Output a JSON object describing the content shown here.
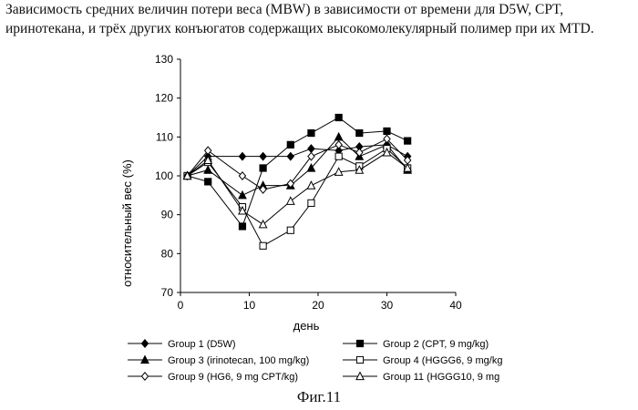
{
  "caption": "Зависимость средних величин потери веса (MBW) в зависимости от времени для D5W, CPT, иринотекана, и трёх других конъюгатов содержащих высокомолекулярный полимер при их MTD.",
  "figure_label": "Фиг.11",
  "chart_data": {
    "type": "line",
    "title": "",
    "xlabel": "день",
    "ylabel": "относительный вес (%)",
    "xlim": [
      0,
      40
    ],
    "ylim": [
      70,
      130
    ],
    "x_ticks": [
      0,
      10,
      20,
      30,
      40
    ],
    "y_ticks": [
      70,
      80,
      90,
      100,
      110,
      120,
      130
    ],
    "grid": false,
    "legend_position": "bottom",
    "series": [
      {
        "name": "Group 1 (D5W)",
        "marker": "diamond-filled",
        "x": [
          1,
          4,
          9,
          12,
          16,
          19,
          23,
          26,
          30,
          33
        ],
        "values": [
          100,
          105,
          105,
          105,
          105,
          107,
          106.5,
          107.5,
          108,
          105
        ]
      },
      {
        "name": "Group 2 (CPT, 9 mg/kg)",
        "marker": "square-filled",
        "x": [
          1,
          4,
          9,
          12,
          16,
          19,
          23,
          26,
          30,
          33
        ],
        "values": [
          100,
          98.5,
          87,
          102,
          108,
          111,
          115,
          111,
          111.5,
          109
        ]
      },
      {
        "name": "Group 3 (irinotecan, 100 mg/kg)",
        "marker": "triangle-filled",
        "x": [
          1,
          4,
          9,
          12,
          16,
          19,
          23,
          26,
          30,
          33
        ],
        "values": [
          100,
          101.5,
          95,
          97.5,
          97.5,
          102,
          110,
          105,
          108,
          101.5
        ]
      },
      {
        "name": "Group 4 (HGGG6, 9 mg/kg",
        "marker": "square-open",
        "x": [
          1,
          4,
          9,
          12,
          16,
          19,
          23,
          26,
          30,
          33
        ],
        "values": [
          100,
          103.5,
          92,
          82,
          86,
          93,
          105,
          102.5,
          107,
          102
        ]
      },
      {
        "name": "Group 9 (HG6, 9 mg CPT/kg)",
        "marker": "diamond-open",
        "x": [
          1,
          4,
          9,
          12,
          16,
          19,
          23,
          26,
          30,
          33
        ],
        "values": [
          100,
          106.5,
          100,
          96.5,
          98,
          105,
          108,
          106,
          109.5,
          104
        ]
      },
      {
        "name": "Group 11 (HGGG10, 9 mg",
        "marker": "triangle-open",
        "x": [
          1,
          4,
          9,
          12,
          16,
          19,
          23,
          26,
          30,
          33
        ],
        "values": [
          100,
          104,
          91,
          87.5,
          93.5,
          97.5,
          101,
          101.5,
          106,
          102
        ]
      }
    ]
  }
}
